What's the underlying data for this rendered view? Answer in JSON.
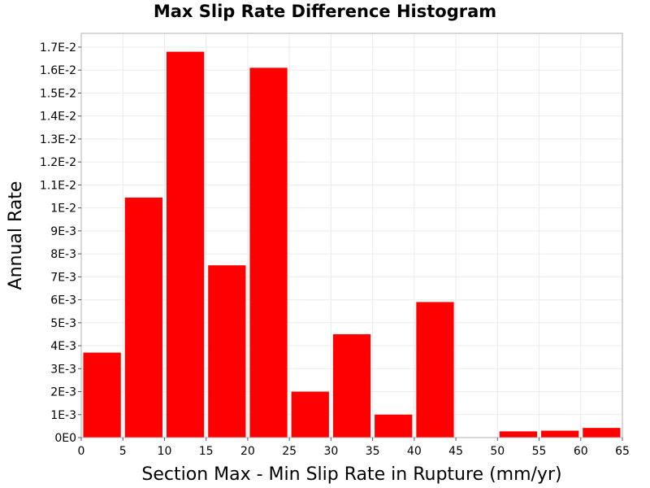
{
  "chart_data": {
    "type": "bar",
    "title": "Max Slip Rate Difference Histogram",
    "xlabel": "Section Max - Min Slip Rate in Rupture (mm/yr)",
    "ylabel": "Annual Rate",
    "xlim": [
      0,
      65
    ],
    "ylim": [
      0,
      0.0176
    ],
    "bin_width": 5,
    "bins": [
      {
        "x0": 0,
        "x1": 5,
        "value": 0.0037
      },
      {
        "x0": 5,
        "x1": 10,
        "value": 0.01045
      },
      {
        "x0": 10,
        "x1": 15,
        "value": 0.0168
      },
      {
        "x0": 15,
        "x1": 20,
        "value": 0.0075
      },
      {
        "x0": 20,
        "x1": 25,
        "value": 0.0161
      },
      {
        "x0": 25,
        "x1": 30,
        "value": 0.002
      },
      {
        "x0": 30,
        "x1": 35,
        "value": 0.0045
      },
      {
        "x0": 35,
        "x1": 40,
        "value": 0.001
      },
      {
        "x0": 40,
        "x1": 45,
        "value": 0.0059
      },
      {
        "x0": 45,
        "x1": 50,
        "value": 0.0
      },
      {
        "x0": 50,
        "x1": 55,
        "value": 0.00027
      },
      {
        "x0": 55,
        "x1": 60,
        "value": 0.0003
      },
      {
        "x0": 60,
        "x1": 65,
        "value": 0.00042
      }
    ],
    "x_ticks": [
      0,
      5,
      10,
      15,
      20,
      25,
      30,
      35,
      40,
      45,
      50,
      55,
      60,
      65
    ],
    "x_tick_labels": [
      "0",
      "5",
      "10",
      "15",
      "20",
      "25",
      "30",
      "35",
      "40",
      "45",
      "50",
      "55",
      "60",
      "65"
    ],
    "y_ticks": [
      0,
      0.001,
      0.002,
      0.003,
      0.004,
      0.005,
      0.006,
      0.007,
      0.008,
      0.009,
      0.01,
      0.011,
      0.012,
      0.013,
      0.014,
      0.015,
      0.016,
      0.017
    ],
    "y_tick_labels": [
      "0E0",
      "1E-3",
      "2E-3",
      "3E-3",
      "4E-3",
      "5E-3",
      "6E-3",
      "7E-3",
      "8E-3",
      "9E-3",
      "1E-2",
      "1.1E-2",
      "1.2E-2",
      "1.3E-2",
      "1.4E-2",
      "1.5E-2",
      "1.6E-2",
      "1.7E-2"
    ],
    "bar_color": "#ff0000",
    "grid": true,
    "grid_color": "#ebebeb",
    "legend": "none"
  }
}
